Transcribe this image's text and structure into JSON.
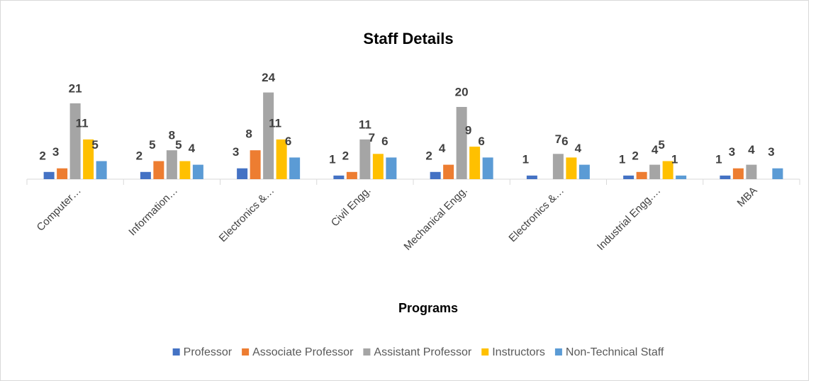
{
  "chart_data": {
    "type": "bar",
    "title": "Staff Details",
    "x_label": "Programs",
    "categories": [
      "Computer…",
      "Information…",
      "Electronics &…",
      "Civil Engg.",
      "Mechanical  Engg.",
      "Electronics &…",
      "Industrial Engg.…",
      "MBA"
    ],
    "series": [
      {
        "name": "Professor",
        "color": "#4472c4",
        "values": [
          2,
          2,
          3,
          1,
          2,
          1,
          1,
          1
        ]
      },
      {
        "name": "Associate Professor",
        "color": "#ed7d31",
        "values": [
          3,
          5,
          8,
          2,
          4,
          null,
          2,
          3
        ]
      },
      {
        "name": "Assistant Professor",
        "color": "#a5a5a5",
        "values": [
          21,
          8,
          24,
          11,
          20,
          7,
          4,
          4
        ]
      },
      {
        "name": "Instructors",
        "color": "#ffc000",
        "values": [
          11,
          5,
          11,
          7,
          9,
          6,
          5,
          null
        ]
      },
      {
        "name": "Non-Technical Staff",
        "color": "#5b9bd5",
        "values": [
          5,
          4,
          6,
          6,
          6,
          4,
          1,
          3
        ]
      }
    ],
    "legend": "bottom"
  }
}
